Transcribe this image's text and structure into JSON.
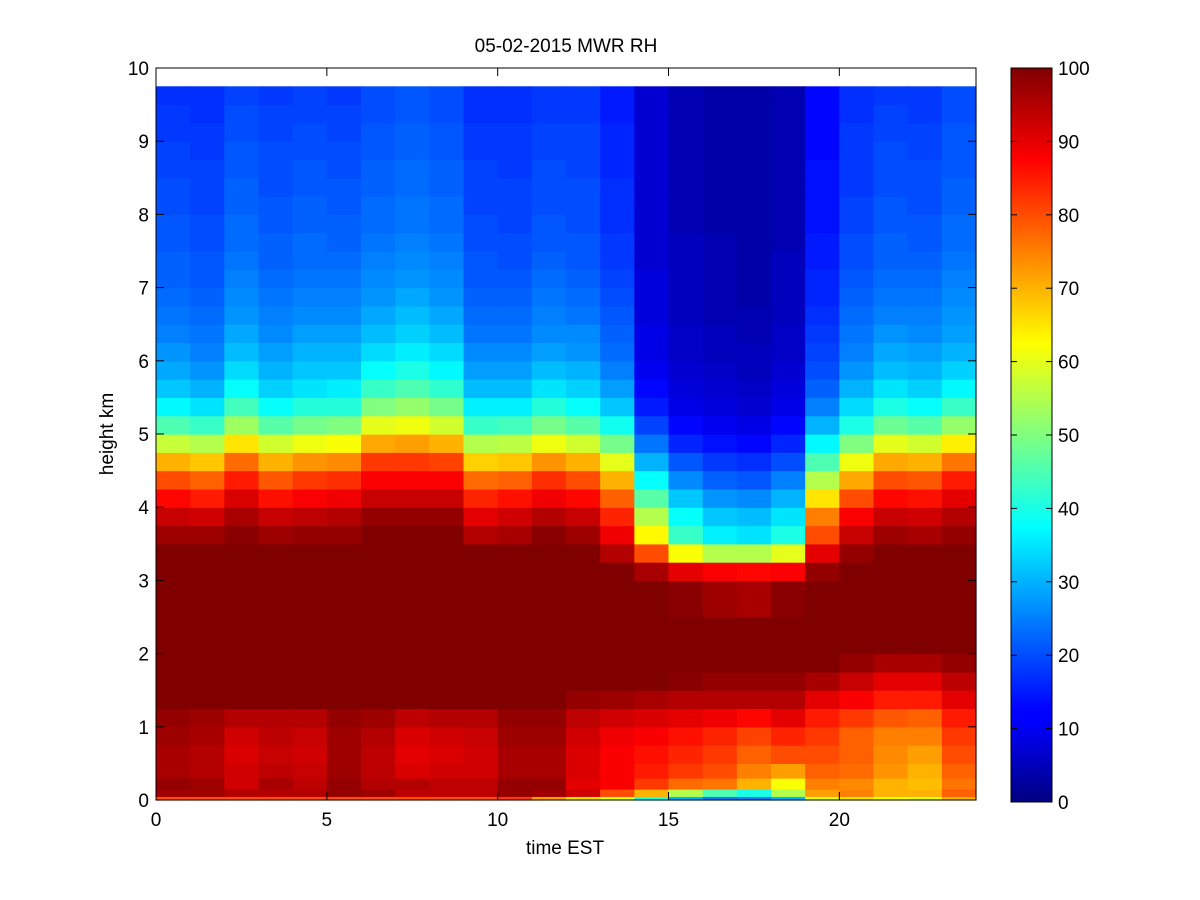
{
  "chart_data": {
    "type": "heatmap",
    "title": "05-02-2015 MWR RH",
    "xlabel": "time EST",
    "ylabel": "height km",
    "xlim": [
      0,
      24
    ],
    "ylim": [
      0,
      10
    ],
    "xticks": [
      0,
      5,
      10,
      15,
      20
    ],
    "yticks": [
      0,
      1,
      2,
      3,
      4,
      5,
      6,
      7,
      8,
      9,
      10
    ],
    "colorbar": {
      "colormap": "jet",
      "range": [
        0,
        100
      ],
      "ticks": [
        0,
        10,
        20,
        30,
        40,
        50,
        60,
        70,
        80,
        90,
        100
      ]
    },
    "grid": false,
    "x": [
      0.5,
      1.5,
      2.5,
      3.5,
      4.5,
      5.5,
      6.5,
      7.5,
      8.5,
      9.5,
      10.5,
      11.5,
      12.5,
      13.5,
      14.5,
      15.5,
      16.5,
      17.5,
      18.5,
      19.5,
      20.5,
      21.5,
      22.5,
      23.5
    ],
    "y_edges": [
      0,
      0.05,
      0.15,
      0.3,
      0.5,
      0.75,
      1.0,
      1.25,
      1.5,
      1.75,
      2.0,
      2.5,
      3.0,
      3.25,
      3.5,
      3.75,
      4.0,
      4.25,
      4.5,
      4.75,
      5.0,
      5.25,
      5.5,
      5.75,
      6.0,
      6.25,
      6.5,
      6.75,
      7.0,
      7.25,
      7.5,
      7.75,
      8.0,
      8.25,
      8.5,
      8.75,
      9.0,
      9.25,
      9.5,
      9.75
    ],
    "values": [
      [
        80,
        80,
        80,
        80,
        80,
        80,
        80,
        80,
        80,
        80,
        82,
        72,
        65,
        60,
        40,
        30,
        25,
        25,
        30,
        60,
        65,
        62,
        60,
        70
      ],
      [
        97,
        97,
        95,
        95,
        95,
        98,
        97,
        94,
        94,
        94,
        98,
        97,
        92,
        80,
        70,
        55,
        45,
        40,
        55,
        72,
        75,
        70,
        70,
        78
      ],
      [
        98,
        97,
        92,
        96,
        94,
        98,
        95,
        95,
        94,
        94,
        98,
        98,
        90,
        88,
        82,
        77,
        76,
        70,
        62,
        75,
        74,
        70,
        69,
        76
      ],
      [
        96,
        95,
        92,
        94,
        93,
        97,
        94,
        91,
        92,
        92,
        96,
        96,
        91,
        88,
        85,
        82,
        80,
        75,
        72,
        78,
        77,
        73,
        70,
        78
      ],
      [
        96,
        95,
        91,
        93,
        92,
        97,
        94,
        90,
        91,
        92,
        96,
        96,
        91,
        88,
        86,
        84,
        82,
        78,
        80,
        80,
        78,
        74,
        72,
        80
      ],
      [
        97,
        96,
        92,
        94,
        93,
        97,
        95,
        91,
        92,
        93,
        97,
        97,
        92,
        89,
        88,
        86,
        84,
        81,
        84,
        82,
        78,
        75,
        75,
        82
      ],
      [
        98,
        97,
        95,
        95,
        95,
        98,
        97,
        94,
        95,
        95,
        98,
        98,
        94,
        92,
        91,
        90,
        89,
        87,
        90,
        85,
        82,
        79,
        78,
        85
      ],
      [
        100,
        100,
        100,
        100,
        100,
        100,
        100,
        100,
        100,
        100,
        100,
        100,
        98,
        97,
        96,
        95,
        95,
        95,
        95,
        90,
        88,
        85,
        85,
        90
      ],
      [
        100,
        100,
        100,
        100,
        100,
        100,
        100,
        100,
        100,
        100,
        100,
        100,
        100,
        100,
        100,
        99,
        98,
        98,
        98,
        96,
        93,
        90,
        90,
        94
      ],
      [
        100,
        100,
        100,
        100,
        100,
        100,
        100,
        100,
        100,
        100,
        100,
        100,
        100,
        100,
        100,
        100,
        100,
        100,
        100,
        100,
        98,
        96,
        96,
        98
      ],
      [
        100,
        100,
        100,
        100,
        100,
        100,
        100,
        100,
        100,
        100,
        100,
        100,
        100,
        100,
        100,
        100,
        100,
        100,
        100,
        100,
        100,
        100,
        100,
        100
      ],
      [
        100,
        100,
        100,
        100,
        100,
        100,
        100,
        100,
        100,
        100,
        100,
        100,
        100,
        100,
        100,
        99,
        97,
        96,
        99,
        100,
        100,
        100,
        100,
        100
      ],
      [
        100,
        100,
        100,
        100,
        100,
        100,
        100,
        100,
        100,
        100,
        100,
        100,
        100,
        100,
        96,
        90,
        88,
        87,
        88,
        98,
        100,
        100,
        100,
        100
      ],
      [
        100,
        100,
        100,
        100,
        100,
        100,
        100,
        100,
        100,
        100,
        100,
        100,
        100,
        95,
        80,
        62,
        55,
        55,
        60,
        90,
        98,
        100,
        100,
        100
      ],
      [
        97,
        97,
        99,
        97,
        98,
        98,
        100,
        100,
        100,
        95,
        96,
        99,
        97,
        89,
        63,
        43,
        36,
        35,
        40,
        80,
        93,
        97,
        96,
        98
      ],
      [
        93,
        92,
        96,
        93,
        94,
        95,
        98,
        98,
        98,
        90,
        92,
        95,
        93,
        84,
        55,
        38,
        32,
        31,
        35,
        75,
        88,
        93,
        92,
        95
      ],
      [
        87,
        85,
        91,
        86,
        88,
        89,
        93,
        93,
        93,
        84,
        86,
        89,
        87,
        78,
        46,
        32,
        27,
        26,
        30,
        65,
        80,
        87,
        86,
        90
      ],
      [
        80,
        78,
        85,
        79,
        82,
        83,
        88,
        88,
        88,
        77,
        78,
        83,
        80,
        70,
        38,
        26,
        22,
        21,
        25,
        55,
        71,
        80,
        79,
        85
      ],
      [
        70,
        68,
        77,
        70,
        73,
        74,
        82,
        82,
        81,
        67,
        68,
        73,
        70,
        60,
        30,
        21,
        18,
        17,
        20,
        45,
        61,
        71,
        70,
        76
      ],
      [
        57,
        55,
        65,
        58,
        61,
        62,
        71,
        72,
        70,
        55,
        56,
        61,
        58,
        49,
        24,
        16,
        14,
        13,
        16,
        37,
        50,
        60,
        58,
        64
      ],
      [
        45,
        43,
        53,
        46,
        49,
        50,
        60,
        61,
        58,
        43,
        44,
        49,
        46,
        39,
        19,
        13,
        11,
        10,
        13,
        30,
        40,
        48,
        46,
        52
      ],
      [
        37,
        35,
        44,
        38,
        41,
        41,
        50,
        52,
        49,
        36,
        36,
        41,
        38,
        32,
        15,
        10,
        9,
        8,
        10,
        25,
        34,
        40,
        38,
        43
      ],
      [
        32,
        30,
        38,
        33,
        35,
        36,
        43,
        45,
        42,
        31,
        31,
        35,
        33,
        28,
        13,
        9,
        8,
        7,
        9,
        22,
        30,
        35,
        33,
        37
      ],
      [
        29,
        27,
        34,
        30,
        32,
        32,
        38,
        40,
        37,
        28,
        28,
        31,
        30,
        25,
        11,
        8,
        7,
        6,
        8,
        20,
        27,
        31,
        30,
        33
      ],
      [
        27,
        25,
        31,
        28,
        30,
        30,
        34,
        36,
        34,
        26,
        26,
        28,
        27,
        23,
        10,
        7,
        6,
        6,
        7,
        19,
        25,
        29,
        28,
        30
      ],
      [
        25,
        24,
        29,
        26,
        28,
        28,
        31,
        33,
        31,
        24,
        24,
        26,
        26,
        22,
        10,
        7,
        6,
        5,
        7,
        18,
        24,
        27,
        26,
        28
      ],
      [
        24,
        23,
        27,
        25,
        26,
        26,
        29,
        31,
        29,
        23,
        23,
        25,
        24,
        21,
        9,
        6,
        5,
        5,
        6,
        17,
        23,
        25,
        25,
        27
      ],
      [
        23,
        22,
        26,
        24,
        25,
        25,
        27,
        29,
        27,
        22,
        22,
        24,
        23,
        20,
        9,
        6,
        5,
        4,
        6,
        16,
        22,
        24,
        24,
        26
      ],
      [
        22,
        21,
        25,
        23,
        24,
        24,
        26,
        27,
        26,
        21,
        21,
        23,
        22,
        19,
        9,
        6,
        5,
        4,
        6,
        16,
        21,
        23,
        23,
        25
      ],
      [
        22,
        21,
        24,
        22,
        23,
        23,
        25,
        26,
        25,
        21,
        20,
        22,
        21,
        18,
        8,
        6,
        5,
        4,
        6,
        15,
        20,
        22,
        22,
        24
      ],
      [
        21,
        20,
        23,
        22,
        23,
        22,
        24,
        25,
        24,
        20,
        20,
        21,
        21,
        18,
        8,
        6,
        5,
        4,
        5,
        15,
        20,
        22,
        21,
        23
      ],
      [
        21,
        20,
        23,
        21,
        22,
        22,
        23,
        24,
        23,
        20,
        19,
        21,
        20,
        17,
        8,
        5,
        4,
        4,
        5,
        14,
        19,
        21,
        21,
        23
      ],
      [
        20,
        19,
        22,
        21,
        22,
        21,
        23,
        24,
        23,
        19,
        19,
        20,
        20,
        17,
        8,
        5,
        4,
        4,
        5,
        14,
        19,
        21,
        20,
        22
      ],
      [
        20,
        19,
        22,
        20,
        21,
        21,
        22,
        23,
        22,
        19,
        19,
        20,
        20,
        17,
        8,
        5,
        4,
        4,
        5,
        14,
        18,
        20,
        20,
        22
      ],
      [
        19,
        19,
        21,
        20,
        21,
        20,
        22,
        23,
        22,
        19,
        18,
        20,
        19,
        16,
        8,
        5,
        4,
        4,
        5,
        14,
        18,
        20,
        20,
        21
      ],
      [
        19,
        18,
        21,
        20,
        20,
        20,
        21,
        22,
        21,
        18,
        18,
        19,
        19,
        16,
        8,
        5,
        4,
        4,
        5,
        13,
        18,
        20,
        19,
        21
      ],
      [
        18,
        18,
        20,
        19,
        20,
        19,
        21,
        22,
        21,
        18,
        18,
        19,
        19,
        16,
        8,
        5,
        4,
        4,
        5,
        13,
        18,
        19,
        19,
        21
      ],
      [
        18,
        17,
        20,
        19,
        19,
        19,
        20,
        21,
        20,
        17,
        17,
        18,
        18,
        15,
        8,
        5,
        4,
        4,
        5,
        13,
        17,
        19,
        18,
        20
      ],
      [
        17,
        17,
        19,
        18,
        19,
        18,
        20,
        21,
        20,
        17,
        17,
        18,
        18,
        15,
        8,
        5,
        4,
        4,
        5,
        13,
        17,
        18,
        18,
        20
      ]
    ]
  }
}
